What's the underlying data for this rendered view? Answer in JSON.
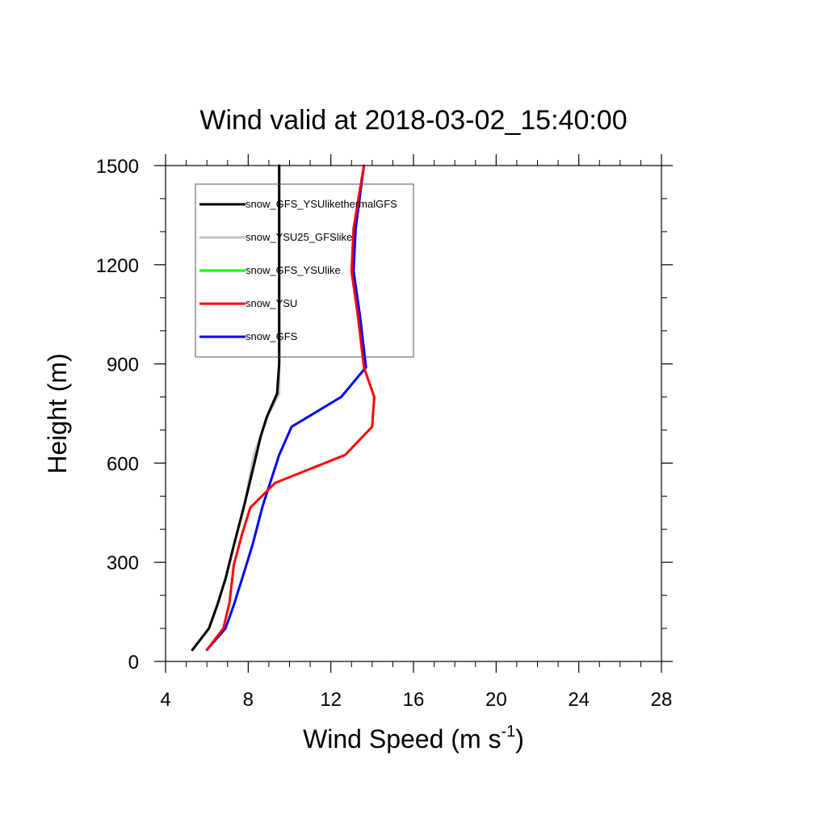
{
  "chart_data": {
    "type": "line",
    "title": "Wind valid at 2018-03-02_15:40:00",
    "xlabel": "Wind Speed (m s",
    "xlabel_sup": "-1",
    "xlabel_end": ")",
    "ylabel": "Height (m)",
    "xlim": [
      4,
      28
    ],
    "ylim": [
      0,
      1500
    ],
    "x_ticks": [
      4,
      8,
      12,
      16,
      20,
      24,
      28
    ],
    "y_ticks": [
      0,
      300,
      600,
      900,
      1200,
      1500
    ],
    "x_minor_step": 1,
    "y_minor_step": 100,
    "grid": false,
    "legend_position": "top-left",
    "series": [
      {
        "name": "snow_GFS",
        "color": "#0000ff",
        "points": [
          [
            6.0,
            35
          ],
          [
            6.9,
            100
          ],
          [
            7.3,
            170
          ],
          [
            7.7,
            250
          ],
          [
            8.2,
            350
          ],
          [
            8.7,
            470
          ],
          [
            9.5,
            625
          ],
          [
            10.1,
            710
          ],
          [
            12.5,
            800
          ],
          [
            13.7,
            890
          ],
          [
            13.4,
            1050
          ],
          [
            13.1,
            1180
          ],
          [
            13.2,
            1310
          ],
          [
            13.6,
            1500
          ]
        ]
      },
      {
        "name": "snow_YSU",
        "color": "#ff0000",
        "points": [
          [
            6.0,
            35
          ],
          [
            6.8,
            100
          ],
          [
            7.1,
            180
          ],
          [
            7.3,
            290
          ],
          [
            7.7,
            385
          ],
          [
            8.1,
            465
          ],
          [
            9.3,
            540
          ],
          [
            12.7,
            625
          ],
          [
            14.0,
            710
          ],
          [
            14.1,
            800
          ],
          [
            13.6,
            890
          ],
          [
            13.3,
            1050
          ],
          [
            13.0,
            1180
          ],
          [
            13.1,
            1310
          ],
          [
            13.6,
            1500
          ]
        ]
      },
      {
        "name": "snow_GFS_YSUlike",
        "color": "#00ff00",
        "points": [
          [
            5.3,
            35
          ],
          [
            6.1,
            100
          ],
          [
            6.5,
            170
          ],
          [
            6.9,
            250
          ],
          [
            7.3,
            350
          ],
          [
            7.8,
            470
          ],
          [
            8.3,
            600
          ],
          [
            8.6,
            680
          ],
          [
            8.9,
            740
          ],
          [
            9.4,
            810
          ],
          [
            9.5,
            900
          ],
          [
            9.5,
            1200
          ],
          [
            9.5,
            1500
          ]
        ]
      },
      {
        "name": "snow_YSU25_GFSlike",
        "color": "#c0c0c0",
        "points": [
          [
            5.3,
            35
          ],
          [
            6.1,
            100
          ],
          [
            6.5,
            170
          ],
          [
            6.9,
            250
          ],
          [
            7.3,
            350
          ],
          [
            7.8,
            470
          ],
          [
            8.3,
            630
          ],
          [
            9.0,
            750
          ],
          [
            9.5,
            810
          ],
          [
            9.5,
            900
          ],
          [
            9.5,
            1200
          ],
          [
            9.5,
            1500
          ]
        ]
      },
      {
        "name": "snow_GFS_YSUlikethermalGFS",
        "color": "#000000",
        "points": [
          [
            5.3,
            35
          ],
          [
            6.1,
            100
          ],
          [
            6.5,
            170
          ],
          [
            6.9,
            250
          ],
          [
            7.3,
            350
          ],
          [
            7.8,
            470
          ],
          [
            8.3,
            600
          ],
          [
            8.6,
            680
          ],
          [
            8.9,
            740
          ],
          [
            9.4,
            810
          ],
          [
            9.5,
            900
          ],
          [
            9.5,
            1200
          ],
          [
            9.5,
            1500
          ]
        ]
      }
    ],
    "legend_order": [
      "snow_GFS_YSUlikethermalGFS",
      "snow_YSU25_GFSlike",
      "snow_GFS_YSUlike",
      "snow_YSU",
      "snow_GFS"
    ]
  }
}
